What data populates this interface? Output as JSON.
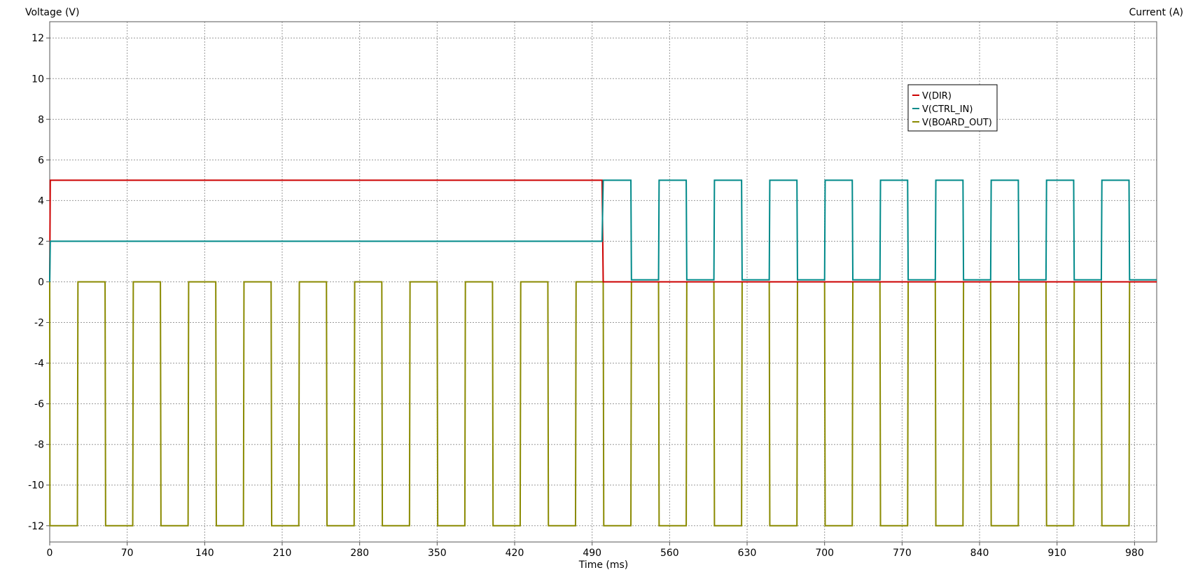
{
  "chart_data": {
    "type": "line",
    "ylabel": "Voltage (V)",
    "y2label": "Current (A)",
    "xlabel": "Time (ms)",
    "xlim": [
      0,
      1000
    ],
    "ylim": [
      -12.8,
      12.8
    ],
    "x_ticks": [
      0,
      70,
      140,
      210,
      280,
      350,
      420,
      490,
      560,
      630,
      700,
      770,
      840,
      910,
      980
    ],
    "x_tick_labels": [
      "0",
      "70",
      "140",
      "210",
      "280",
      "350",
      "420",
      "490",
      "560",
      "630",
      "700",
      "770",
      "840",
      "910",
      "980"
    ],
    "y_ticks": [
      12,
      10,
      8,
      6,
      4,
      2,
      0,
      -2,
      -4,
      -6,
      -8,
      -10,
      -12
    ],
    "y_tick_labels": [
      "12",
      "10",
      "8",
      "6",
      "4",
      "2",
      "0",
      "-2",
      "-4",
      "-6",
      "-8",
      "-10",
      "-12"
    ],
    "grid": true,
    "legend_position": "upper-right",
    "series": [
      {
        "name": "V(DIR)",
        "color": "#cc0000",
        "x": [
          0,
          0.5,
          499,
          500,
          1000
        ],
        "y": [
          0,
          5,
          5,
          0,
          0
        ]
      },
      {
        "name": "V(CTRL_IN)",
        "color": "#008a8a",
        "x": [
          0,
          0.5,
          499,
          500,
          525,
          525.5,
          550,
          550.5,
          575,
          575.5,
          600,
          600.5,
          625,
          625.5,
          650,
          650.5,
          675,
          675.5,
          700,
          700.5,
          725,
          725.5,
          750,
          750.5,
          775,
          775.5,
          800,
          800.5,
          825,
          825.5,
          850,
          850.5,
          875,
          875.5,
          900,
          900.5,
          925,
          925.5,
          950,
          950.5,
          975,
          975.5,
          1000
        ],
        "y": [
          0,
          2,
          2,
          5,
          5,
          0.1,
          0.1,
          5,
          5,
          0.1,
          0.1,
          5,
          5,
          0.1,
          0.1,
          5,
          5,
          0.1,
          0.1,
          5,
          5,
          0.1,
          0.1,
          5,
          5,
          0.1,
          0.1,
          5,
          5,
          0.1,
          0.1,
          5,
          5,
          0.1,
          0.1,
          5,
          5,
          0.1,
          0.1,
          5,
          5,
          0.1,
          0.1
        ]
      },
      {
        "name": "V(BOARD_OUT)",
        "color": "#8a8a00",
        "x": [
          0,
          0.2,
          25,
          25.5,
          50,
          50.5,
          75,
          75.5,
          100,
          100.5,
          125,
          125.5,
          150,
          150.5,
          175,
          175.5,
          200,
          200.5,
          225,
          225.5,
          250,
          250.5,
          275,
          275.5,
          300,
          300.5,
          325,
          325.5,
          350,
          350.5,
          375,
          375.5,
          400,
          400.5,
          425,
          425.5,
          450,
          450.5,
          475,
          475.5,
          500,
          500.5,
          525,
          525.5,
          550,
          550.5,
          575,
          575.5,
          600,
          600.5,
          625,
          625.5,
          650,
          650.5,
          675,
          675.5,
          700,
          700.5,
          725,
          725.5,
          750,
          750.5,
          775,
          775.5,
          800,
          800.5,
          825,
          825.5,
          850,
          850.5,
          875,
          875.5,
          900,
          900.5,
          925,
          925.5,
          950,
          950.5,
          975,
          975.5,
          1000
        ],
        "y": [
          0,
          -12,
          -12,
          0,
          0,
          -12,
          -12,
          0,
          0,
          -12,
          -12,
          0,
          0,
          -12,
          -12,
          0,
          0,
          -12,
          -12,
          0,
          0,
          -12,
          -12,
          0,
          0,
          -12,
          -12,
          0,
          0,
          -12,
          -12,
          0,
          0,
          -12,
          -12,
          0,
          0,
          -12,
          -12,
          0,
          0,
          -12,
          -12,
          0,
          0,
          -12,
          -12,
          0,
          0,
          -12,
          -12,
          0,
          0,
          -12,
          -12,
          0,
          0,
          -12,
          -12,
          0,
          0,
          -12,
          -12,
          0,
          0,
          -12,
          -12,
          0,
          0,
          -12,
          -12,
          0,
          0,
          -12,
          -12,
          0,
          0,
          -12,
          -12,
          0,
          0
        ]
      }
    ]
  }
}
